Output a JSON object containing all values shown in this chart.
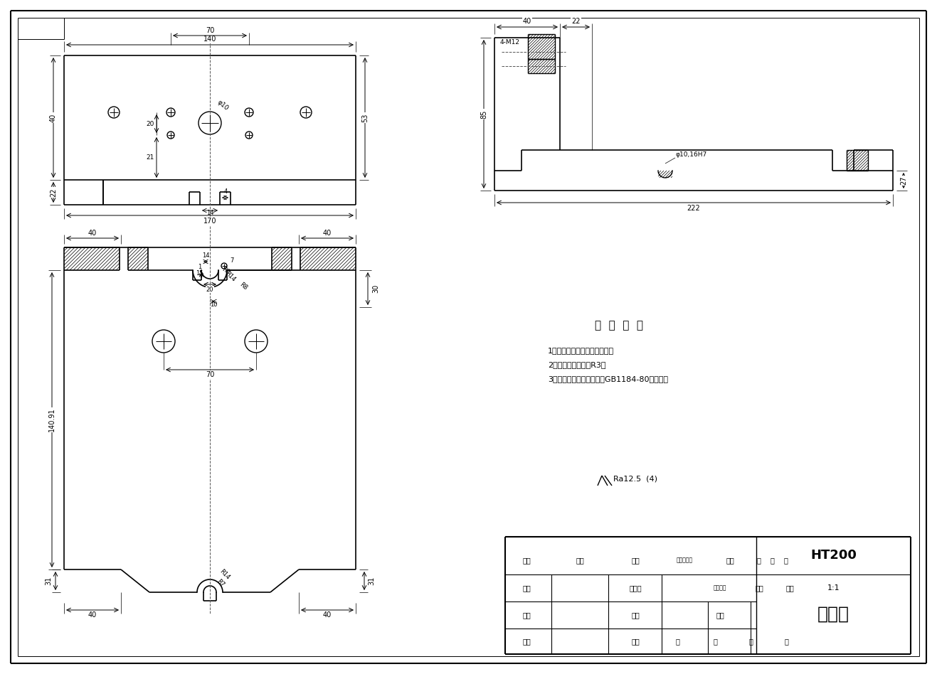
{
  "background_color": "#ffffff",
  "line_color": "#000000",
  "title_block": {
    "material": "HT200",
    "part_name": "夹具体",
    "scale": "1:1"
  },
  "tech_requirements": [
    "技  术  要  求",
    "1、零件加工面上不应有划痕；",
    "2、未注明图角均为R3；",
    "3、未注明形状公差应符合GB1184-80的要求。"
  ],
  "roughness_text": "Ra12.5  (4)"
}
